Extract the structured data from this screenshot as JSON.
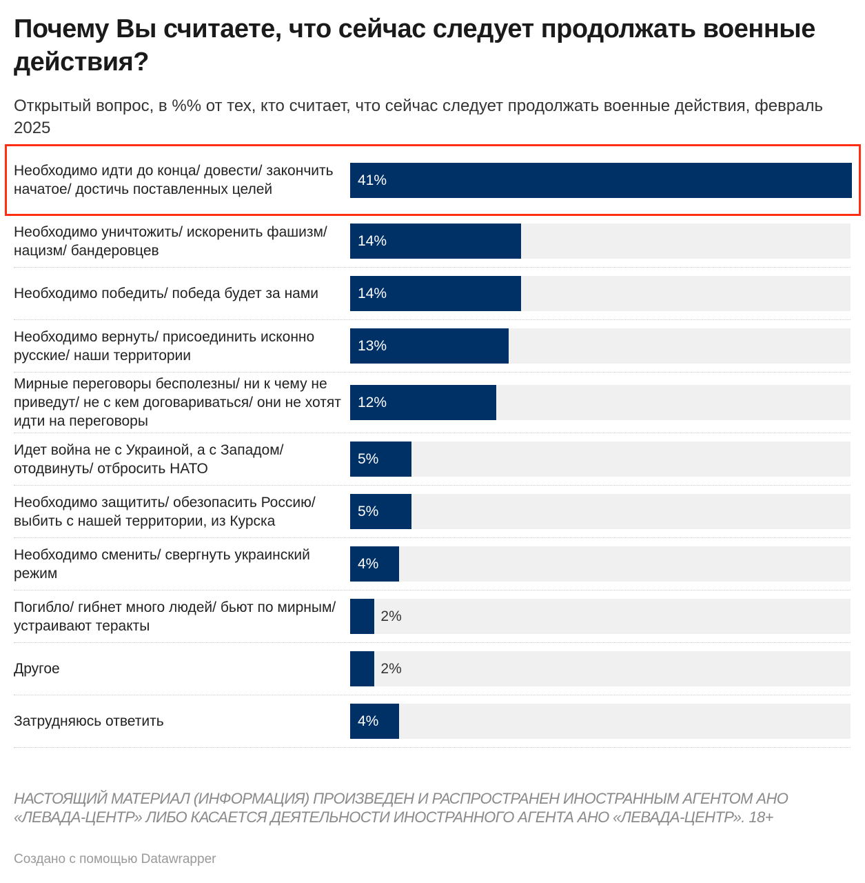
{
  "title": "Почему Вы считаете, что сейчас следует продолжать военные действия?",
  "subtitle": "Открытый вопрос, в %% от тех, кто считает, что сейчас следует продолжать военные действия, февраль 2025",
  "chart_data": {
    "type": "bar",
    "orientation": "horizontal",
    "categories": [
      "Необходимо идти до конца/ довести/ закончить начатое/ достичь поставленных целей",
      "Необходимо уничтожить/ искоренить фашизм/ нацизм/ бандеровцев",
      "Необходимо победить/ победа будет за нами",
      "Необходимо вернуть/ присоединить исконно русские/ наши территории",
      "Мирные переговоры бесполезны/ ни к чему не приведут/ не с кем договариваться/ они не хотят идти на переговоры",
      "Идет война не с Украиной, а с Западом/ отодвинуть/ отбросить НАТО",
      "Необходимо защитить/ обезопасить Россию/ выбить с нашей территории, из Курска",
      "Необходимо сменить/ свергнуть украинский режим",
      "Погибло/ гибнет много людей/ бьют по мирным/ устраивают теракты",
      "Другое",
      "Затрудняюсь ответить"
    ],
    "values": [
      41,
      14,
      14,
      13,
      12,
      5,
      5,
      4,
      2,
      2,
      4
    ],
    "labels": [
      "41%",
      "14%",
      "14%",
      "13%",
      "12%",
      "5%",
      "5%",
      "4%",
      "2%",
      "2%",
      "4%"
    ],
    "xlim": [
      0,
      41
    ],
    "bar_color": "#003166",
    "track_color": "#f0f0f0",
    "highlight_color": "#ff2d12",
    "highlighted_index": 0
  },
  "footer": {
    "note": "НАСТОЯЩИЙ МАТЕРИАЛ (ИНФОРМАЦИЯ) ПРОИЗВЕДЕН И РАСПРОСТРАНЕН ИНОСТРАННЫМ АГЕНТОМ АНО «ЛЕВАДА-ЦЕНТР» ЛИБО КАСАЕТСЯ ДЕЯТЕЛЬНОСТИ ИНОСТРАННОГО АГЕНТА АНО «ЛЕВАДА-ЦЕНТР». 18+",
    "credit": "Создано с помощью Datawrapper"
  }
}
